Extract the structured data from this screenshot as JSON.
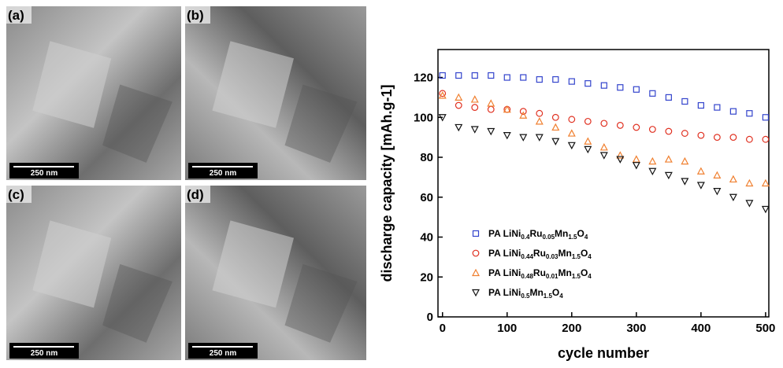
{
  "panels": [
    {
      "label": "(a)",
      "scale_bar": "250 nm"
    },
    {
      "label": "(b)",
      "scale_bar": "250 nm"
    },
    {
      "label": "(c)",
      "scale_bar": "250 nm"
    },
    {
      "label": "(d)",
      "scale_bar": "250 nm"
    }
  ],
  "chart_data": {
    "type": "scatter",
    "x_label": "cycle number",
    "y_label": "discharge capacity [mAh.g-1]",
    "x": [
      0,
      25,
      50,
      75,
      100,
      125,
      150,
      175,
      200,
      225,
      250,
      275,
      300,
      325,
      350,
      375,
      400,
      425,
      450,
      475,
      500
    ],
    "series": [
      {
        "name": "PA LiNi0.4Ru0.05Mn1.5O4",
        "color": "#3344cc",
        "marker": "square",
        "values": [
          121,
          121,
          121,
          121,
          120,
          120,
          119,
          119,
          118,
          117,
          116,
          115,
          114,
          112,
          110,
          108,
          106,
          105,
          103,
          102,
          100
        ]
      },
      {
        "name": "PA LiNi0.44Ru0.03Mn1.5O4",
        "color": "#e03020",
        "marker": "circle",
        "values": [
          112,
          106,
          105,
          104,
          104,
          103,
          102,
          100,
          99,
          98,
          97,
          96,
          95,
          94,
          93,
          92,
          91,
          90,
          90,
          89,
          89
        ]
      },
      {
        "name": "PA LiNi0.48Ru0.01Mn1.5O4",
        "color": "#f08030",
        "marker": "triangle",
        "values": [
          111,
          110,
          109,
          107,
          104,
          101,
          98,
          95,
          92,
          88,
          85,
          81,
          79,
          78,
          79,
          78,
          73,
          71,
          69,
          67,
          67
        ]
      },
      {
        "name": "PA LiNi0.5Mn1.5O4",
        "color": "#111111",
        "marker": "triangle-down",
        "values": [
          100,
          95,
          94,
          93,
          91,
          90,
          90,
          88,
          86,
          84,
          81,
          79,
          76,
          73,
          71,
          68,
          66,
          63,
          60,
          57,
          54
        ]
      }
    ],
    "xlim": [
      -7,
      505
    ],
    "ylim": [
      0,
      134
    ],
    "xticks": [
      0,
      100,
      200,
      300,
      400,
      500
    ],
    "yticks": [
      0,
      20,
      40,
      60,
      80,
      100,
      120
    ],
    "legend": "lower left"
  }
}
